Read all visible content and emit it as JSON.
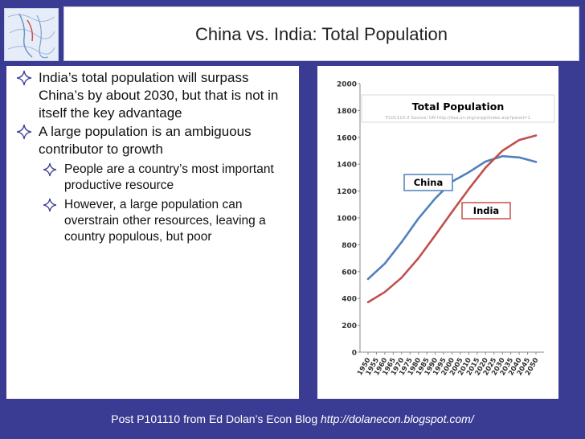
{
  "slide": {
    "title": "China vs. India: Total Population",
    "bullets": [
      {
        "text": "India’s total population will surpass China’s by about 2030, but that is not in itself the key advantage"
      },
      {
        "text": "A large population is an ambiguous contributor to growth",
        "sub": [
          {
            "text": "People are a country’s most important productive resource"
          },
          {
            "text": "However, a large population can overstrain other resources, leaving a country populous, but poor"
          }
        ]
      }
    ],
    "footer": {
      "text": "Post P101110 from Ed Dolan’s Econ Blog",
      "url": "http://dolanecon.blogspot.com/"
    }
  },
  "chart_data": {
    "type": "line",
    "title": "Total Population",
    "source_note": "P101110-2 Source: UN http://esa.un.org/unpp/index.asp?panel=1",
    "x": [
      1950,
      1960,
      1970,
      1980,
      1990,
      2000,
      2010,
      2020,
      2030,
      2040,
      2050
    ],
    "series": [
      {
        "name": "China",
        "color": "#4f81bd",
        "values": [
          545,
          660,
          820,
          995,
          1145,
          1270,
          1340,
          1420,
          1460,
          1450,
          1417
        ]
      },
      {
        "name": "India",
        "color": "#c0504d",
        "values": [
          372,
          448,
          555,
          700,
          870,
          1045,
          1215,
          1375,
          1500,
          1580,
          1614
        ]
      }
    ],
    "ylim": [
      0,
      2000
    ],
    "ytick_labels": [
      "0",
      "200",
      "400",
      "600",
      "800",
      "1000",
      "1200",
      "1400",
      "1600",
      "1800",
      "2000"
    ],
    "xtick_labels": [
      "1950",
      "1955",
      "1960",
      "1965",
      "1970",
      "1975",
      "1980",
      "1985",
      "1990",
      "1995",
      "2000",
      "2005",
      "2010",
      "2015",
      "2020",
      "2025",
      "2030",
      "2035",
      "2040",
      "2045",
      "2050"
    ],
    "grid": false,
    "legend": "callout labels"
  },
  "colors": {
    "background": "#3a3c93",
    "bullet": "#3a3c93"
  },
  "icons": {
    "bullet": "four-point-star-diamond",
    "logo": "map-logo"
  }
}
